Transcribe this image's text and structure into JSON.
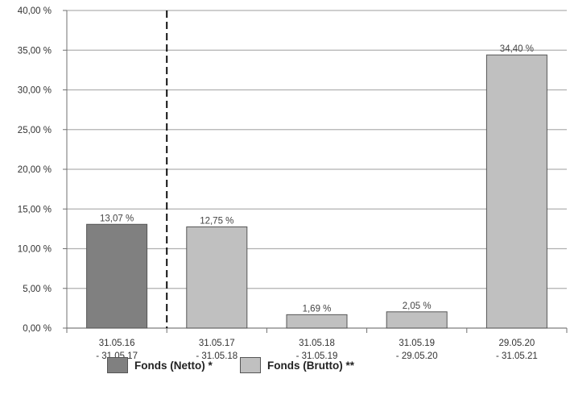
{
  "chart_data": {
    "type": "bar",
    "categories": [
      [
        "31.05.16",
        " - 31.05.17"
      ],
      [
        "31.05.17",
        " - 31.05.18"
      ],
      [
        "31.05.18",
        " - 31.05.19"
      ],
      [
        "31.05.19",
        " - 29.05.20"
      ],
      [
        "29.05.20",
        " - 31.05.21"
      ]
    ],
    "values": [
      13.07,
      12.75,
      1.69,
      2.05,
      34.4
    ],
    "value_labels": [
      "13,07 %",
      "12,75 %",
      "1,69 %",
      "2,05 %",
      "34,40 %"
    ],
    "series_index": [
      0,
      1,
      1,
      1,
      1
    ],
    "ylim": [
      0,
      40
    ],
    "yticks": [
      0,
      5,
      10,
      15,
      20,
      25,
      30,
      35,
      40
    ],
    "ytick_labels": [
      "0,00 %",
      "5,00 %",
      "10,00 %",
      "15,00 %",
      "20,00 %",
      "25,00 %",
      "30,00 %",
      "35,00 %",
      "40,00 %"
    ],
    "grid": true,
    "separator_after_category": 0,
    "legend_position": "bottom",
    "series": [
      {
        "name": "Fonds (Netto) *",
        "color": "#808080"
      },
      {
        "name": "Fonds (Brutto) **",
        "color": "#c0c0c0"
      }
    ],
    "title": "",
    "xlabel": "",
    "ylabel": ""
  }
}
